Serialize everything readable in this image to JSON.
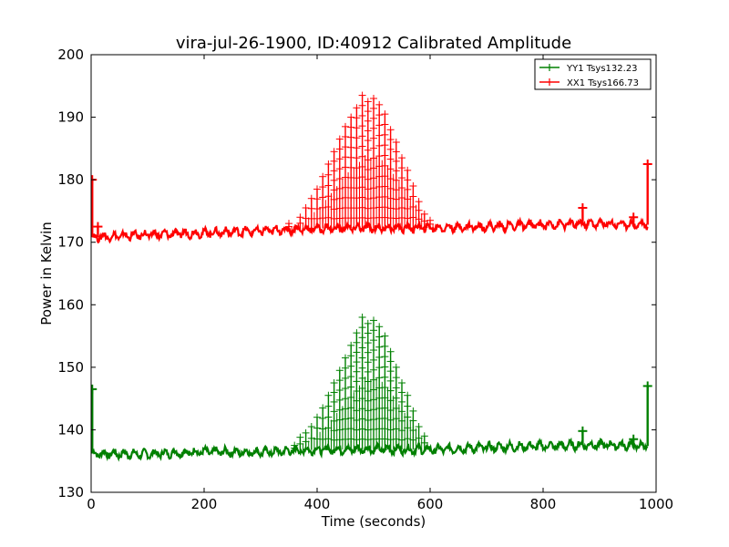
{
  "chart_data": {
    "type": "line",
    "title": "vira-jul-26-1900, ID:40912 Calibrated Amplitude",
    "xlabel": "Time (seconds)",
    "ylabel": "Power in Kelvin",
    "xlim": [
      0,
      1000
    ],
    "ylim": [
      130,
      200
    ],
    "xticks": [
      "0",
      "200",
      "400",
      "600",
      "800",
      "1000"
    ],
    "yticks": [
      "130",
      "140",
      "150",
      "160",
      "170",
      "180",
      "190",
      "200"
    ],
    "grid": false,
    "legend_position": "top-right",
    "series": [
      {
        "name": "YY1 Tsys132.23",
        "color": "#008000",
        "marker": "+",
        "baseline": [
          [
            0,
            136.2
          ],
          [
            100,
            136.1
          ],
          [
            200,
            136.5
          ],
          [
            300,
            136.4
          ],
          [
            400,
            136.8
          ],
          [
            500,
            136.9
          ],
          [
            600,
            136.8
          ],
          [
            700,
            137.2
          ],
          [
            800,
            137.4
          ],
          [
            900,
            137.6
          ],
          [
            985,
            137.4
          ]
        ],
        "peaks": [
          [
            360,
            137.5
          ],
          [
            370,
            138.8
          ],
          [
            380,
            139.5
          ],
          [
            390,
            140.5
          ],
          [
            400,
            142.0
          ],
          [
            410,
            143.5
          ],
          [
            420,
            145.5
          ],
          [
            430,
            147.5
          ],
          [
            440,
            149.5
          ],
          [
            450,
            151.5
          ],
          [
            460,
            153.5
          ],
          [
            470,
            155.5
          ],
          [
            480,
            158.0
          ],
          [
            490,
            157.0
          ],
          [
            500,
            157.5
          ],
          [
            510,
            156.5
          ],
          [
            520,
            155.0
          ],
          [
            530,
            152.5
          ],
          [
            540,
            150.0
          ],
          [
            550,
            147.5
          ],
          [
            560,
            145.5
          ],
          [
            570,
            143.0
          ],
          [
            580,
            140.5
          ],
          [
            590,
            139.0
          ]
        ],
        "edge_spikes": [
          [
            2,
            146.5
          ],
          [
            985,
            147.0
          ],
          [
            870,
            139.8
          ],
          [
            960,
            138.5
          ]
        ]
      },
      {
        "name": "XX1 Tsys166.73",
        "color": "#ff0000",
        "marker": "+",
        "baseline": [
          [
            0,
            170.8
          ],
          [
            100,
            171.2
          ],
          [
            200,
            171.5
          ],
          [
            300,
            171.8
          ],
          [
            400,
            172.2
          ],
          [
            500,
            172.3
          ],
          [
            600,
            172.3
          ],
          [
            700,
            172.5
          ],
          [
            800,
            172.8
          ],
          [
            900,
            173.0
          ],
          [
            985,
            172.8
          ]
        ],
        "peaks": [
          [
            350,
            173.0
          ],
          [
            370,
            174.0
          ],
          [
            380,
            175.5
          ],
          [
            390,
            177.0
          ],
          [
            400,
            178.5
          ],
          [
            410,
            180.5
          ],
          [
            420,
            182.5
          ],
          [
            430,
            184.5
          ],
          [
            440,
            186.5
          ],
          [
            450,
            188.5
          ],
          [
            460,
            190.0
          ],
          [
            470,
            191.5
          ],
          [
            480,
            193.5
          ],
          [
            490,
            192.5
          ],
          [
            500,
            193.0
          ],
          [
            510,
            192.0
          ],
          [
            520,
            190.5
          ],
          [
            530,
            188.0
          ],
          [
            540,
            186.0
          ],
          [
            550,
            183.5
          ],
          [
            560,
            181.5
          ],
          [
            570,
            179.0
          ],
          [
            580,
            176.5
          ],
          [
            590,
            174.5
          ],
          [
            600,
            173.5
          ]
        ],
        "edge_spikes": [
          [
            2,
            180.0
          ],
          [
            985,
            182.5
          ],
          [
            870,
            175.5
          ],
          [
            960,
            174.0
          ],
          [
            12,
            172.5
          ]
        ]
      }
    ]
  }
}
